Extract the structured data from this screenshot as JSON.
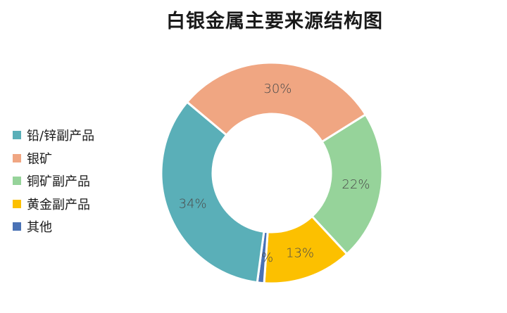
{
  "chart_data": {
    "type": "pie",
    "subtype": "donut",
    "title": "白银金属主要来源结构图",
    "categories": [
      "铅/锌副产品",
      "银矿",
      "铜矿副产品",
      "黄金副产品",
      "其他"
    ],
    "values": [
      34,
      30,
      22,
      13,
      1
    ],
    "labels": [
      "34%",
      "30%",
      "22%",
      "13%",
      "1%"
    ],
    "colors": [
      "#5aafb8",
      "#f0a682",
      "#96d39a",
      "#fcc000",
      "#4a72b5"
    ],
    "legend_position": "left",
    "unit": "%"
  },
  "title": "白银金属主要来源结构图",
  "legend": [
    {
      "label": "铅/锌副产品",
      "color": "#5aafb8"
    },
    {
      "label": "银矿",
      "color": "#f0a682"
    },
    {
      "label": "铜矿副产品",
      "color": "#96d39a"
    },
    {
      "label": "黄金副产品",
      "color": "#fcc000"
    },
    {
      "label": "其他",
      "color": "#4a72b5"
    }
  ]
}
